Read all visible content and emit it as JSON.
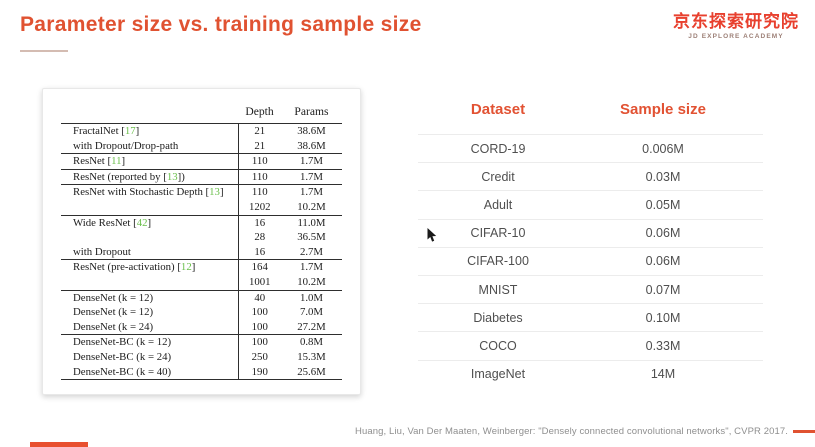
{
  "slide": {
    "title": "Parameter size vs. training sample size",
    "logo": {
      "cn": "京东探索研究院",
      "en": "JD EXPLORE ACADEMY"
    },
    "citation": "Huang, Liu, Van Der Maaten, Weinberger: \"Densely connected convolutional networks\", CVPR 2017.",
    "colors": {
      "accent": "#e05231",
      "logo_red": "#e8402e",
      "ref_green": "#6abf4b",
      "row_text": "#4f4f4f"
    }
  },
  "paper_table": {
    "columns": [
      "Depth",
      "Params"
    ],
    "rows": [
      {
        "pre": "FractalNet [",
        "ref": "17",
        "post": "]",
        "depth": "21",
        "params": "38.6M",
        "group_end": false
      },
      {
        "pre": "with Dropout/Drop-path",
        "ref": "",
        "post": "",
        "depth": "21",
        "params": "38.6M",
        "group_end": true
      },
      {
        "pre": "ResNet [",
        "ref": "11",
        "post": "]",
        "depth": "110",
        "params": "1.7M",
        "group_end": true
      },
      {
        "pre": "ResNet (reported by [",
        "ref": "13",
        "post": "])",
        "depth": "110",
        "params": "1.7M",
        "group_end": true
      },
      {
        "pre": "ResNet with Stochastic Depth [",
        "ref": "13",
        "post": "]",
        "depth": "110",
        "params": "1.7M",
        "group_end": false
      },
      {
        "pre": "",
        "ref": "",
        "post": "",
        "depth": "1202",
        "params": "10.2M",
        "group_end": true
      },
      {
        "pre": "Wide ResNet [",
        "ref": "42",
        "post": "]",
        "depth": "16",
        "params": "11.0M",
        "group_end": false
      },
      {
        "pre": "",
        "ref": "",
        "post": "",
        "depth": "28",
        "params": "36.5M",
        "group_end": false
      },
      {
        "pre": "with Dropout",
        "ref": "",
        "post": "",
        "depth": "16",
        "params": "2.7M",
        "group_end": true
      },
      {
        "pre": "ResNet (pre-activation) [",
        "ref": "12",
        "post": "]",
        "depth": "164",
        "params": "1.7M",
        "group_end": false
      },
      {
        "pre": "",
        "ref": "",
        "post": "",
        "depth": "1001",
        "params": "10.2M",
        "group_end": true
      },
      {
        "pre": "DenseNet (k = 12)",
        "ref": "",
        "post": "",
        "depth": "40",
        "params": "1.0M",
        "group_end": false
      },
      {
        "pre": "DenseNet (k = 12)",
        "ref": "",
        "post": "",
        "depth": "100",
        "params": "7.0M",
        "group_end": false
      },
      {
        "pre": "DenseNet (k = 24)",
        "ref": "",
        "post": "",
        "depth": "100",
        "params": "27.2M",
        "group_end": true
      },
      {
        "pre": "DenseNet-BC (k = 12)",
        "ref": "",
        "post": "",
        "depth": "100",
        "params": "0.8M",
        "group_end": false
      },
      {
        "pre": "DenseNet-BC (k = 24)",
        "ref": "",
        "post": "",
        "depth": "250",
        "params": "15.3M",
        "group_end": false
      },
      {
        "pre": "DenseNet-BC (k = 40)",
        "ref": "",
        "post": "",
        "depth": "190",
        "params": "25.6M",
        "group_end": true
      }
    ]
  },
  "dataset_table": {
    "columns": [
      "Dataset",
      "Sample size"
    ],
    "rows": [
      {
        "dataset": "CORD-19",
        "sample_size": "0.006M"
      },
      {
        "dataset": "Credit",
        "sample_size": "0.03M"
      },
      {
        "dataset": "Adult",
        "sample_size": "0.05M"
      },
      {
        "dataset": "CIFAR-10",
        "sample_size": "0.06M"
      },
      {
        "dataset": "CIFAR-100",
        "sample_size": "0.06M"
      },
      {
        "dataset": "MNIST",
        "sample_size": "0.07M"
      },
      {
        "dataset": "Diabetes",
        "sample_size": "0.10M"
      },
      {
        "dataset": "COCO",
        "sample_size": "0.33M"
      },
      {
        "dataset": "ImageNet",
        "sample_size": "14M"
      }
    ]
  }
}
